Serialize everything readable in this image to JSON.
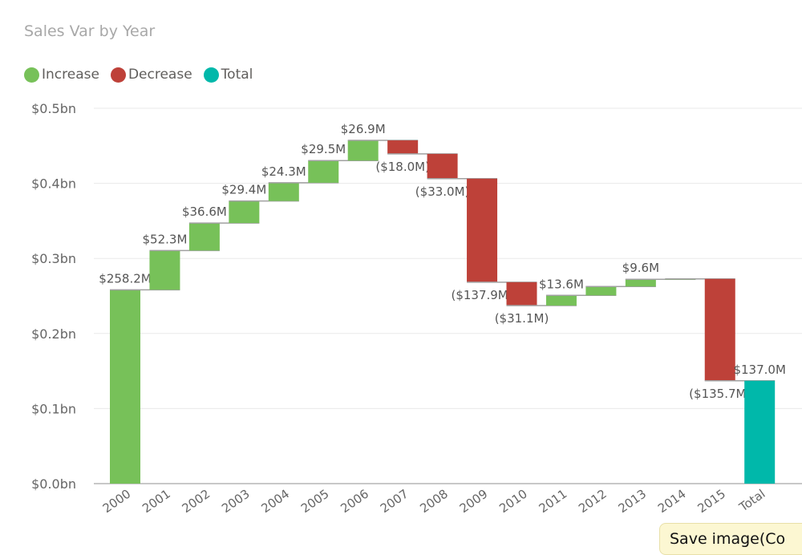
{
  "chart_data": {
    "type": "waterfall",
    "title": "Sales Var by Year",
    "legend": {
      "placement": "top-left",
      "entries": [
        {
          "label": "Increase",
          "color": "#77c159"
        },
        {
          "label": "Decrease",
          "color": "#be4139"
        },
        {
          "label": "Total",
          "color": "#00b8aa"
        }
      ]
    },
    "categories": [
      "2000",
      "2001",
      "2002",
      "2003",
      "2004",
      "2005",
      "2006",
      "2007",
      "2008",
      "2009",
      "2010",
      "2011",
      "2012",
      "2013",
      "2014",
      "2015",
      "Total"
    ],
    "values_musd": [
      258.2,
      52.3,
      36.6,
      29.4,
      24.3,
      29.5,
      26.9,
      -18.0,
      -33.0,
      -137.9,
      -31.1,
      13.6,
      11.8,
      9.6,
      0.5,
      -135.7,
      137.0
    ],
    "data_labels": [
      "$258.2M",
      "$52.3M",
      "$36.6M",
      "$29.4M",
      "$24.3M",
      "$29.5M",
      "$26.9M",
      "($18.0M)",
      "($33.0M)",
      "($137.9M)",
      "($31.1M)",
      "$13.6M",
      null,
      "$9.6M",
      null,
      "($135.7M)",
      "$137.0M"
    ],
    "y_ticks": [
      {
        "value": 0,
        "label": "$0.0bn"
      },
      {
        "value": 0.1,
        "label": "$0.1bn"
      },
      {
        "value": 0.2,
        "label": "$0.2bn"
      },
      {
        "value": 0.3,
        "label": "$0.3bn"
      },
      {
        "value": 0.4,
        "label": "$0.4bn"
      },
      {
        "value": 0.5,
        "label": "$0.5bn"
      }
    ],
    "ylim_bn": [
      0,
      0.5
    ],
    "grid": true
  },
  "tooltip": {
    "text": "Save image(Co"
  }
}
